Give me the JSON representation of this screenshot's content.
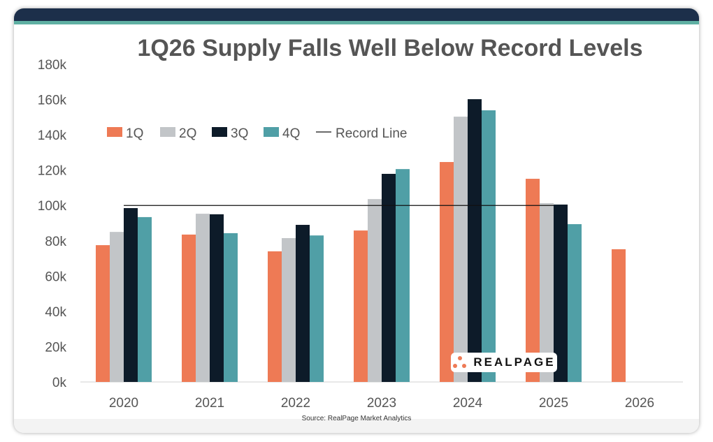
{
  "chart_data": {
    "type": "bar",
    "title": "1Q26 Supply Falls Well Below Record Levels",
    "categories": [
      "2020",
      "2021",
      "2022",
      "2023",
      "2024",
      "2025",
      "2026"
    ],
    "series": [
      {
        "name": "1Q",
        "color": "#ee7a55",
        "values": [
          77.5,
          83.5,
          74,
          85.8,
          124.6,
          115.1,
          75.2
        ]
      },
      {
        "name": "2Q",
        "color": "#c2c5c8",
        "values": [
          85,
          95.3,
          81.5,
          103.6,
          150.3,
          101.3,
          null
        ]
      },
      {
        "name": "3Q",
        "color": "#0d1b29",
        "values": [
          98.5,
          95,
          89,
          117.9,
          160.2,
          100.5,
          null
        ]
      },
      {
        "name": "4Q",
        "color": "#509fa6",
        "values": [
          93.4,
          84.3,
          83,
          120.6,
          153.9,
          89.4,
          null
        ]
      }
    ],
    "record_line": {
      "name": "Record Line",
      "value": 100,
      "color": "#111111"
    },
    "unit": "k",
    "ylim": [
      0,
      180
    ],
    "yticks": [
      "0k",
      "20k",
      "40k",
      "60k",
      "80k",
      "100k",
      "120k",
      "140k",
      "160k",
      "180k"
    ],
    "grid": false,
    "legend": "top-left"
  },
  "source": "Source: RealPage Market Analytics",
  "logo_text": "REALPAGE"
}
